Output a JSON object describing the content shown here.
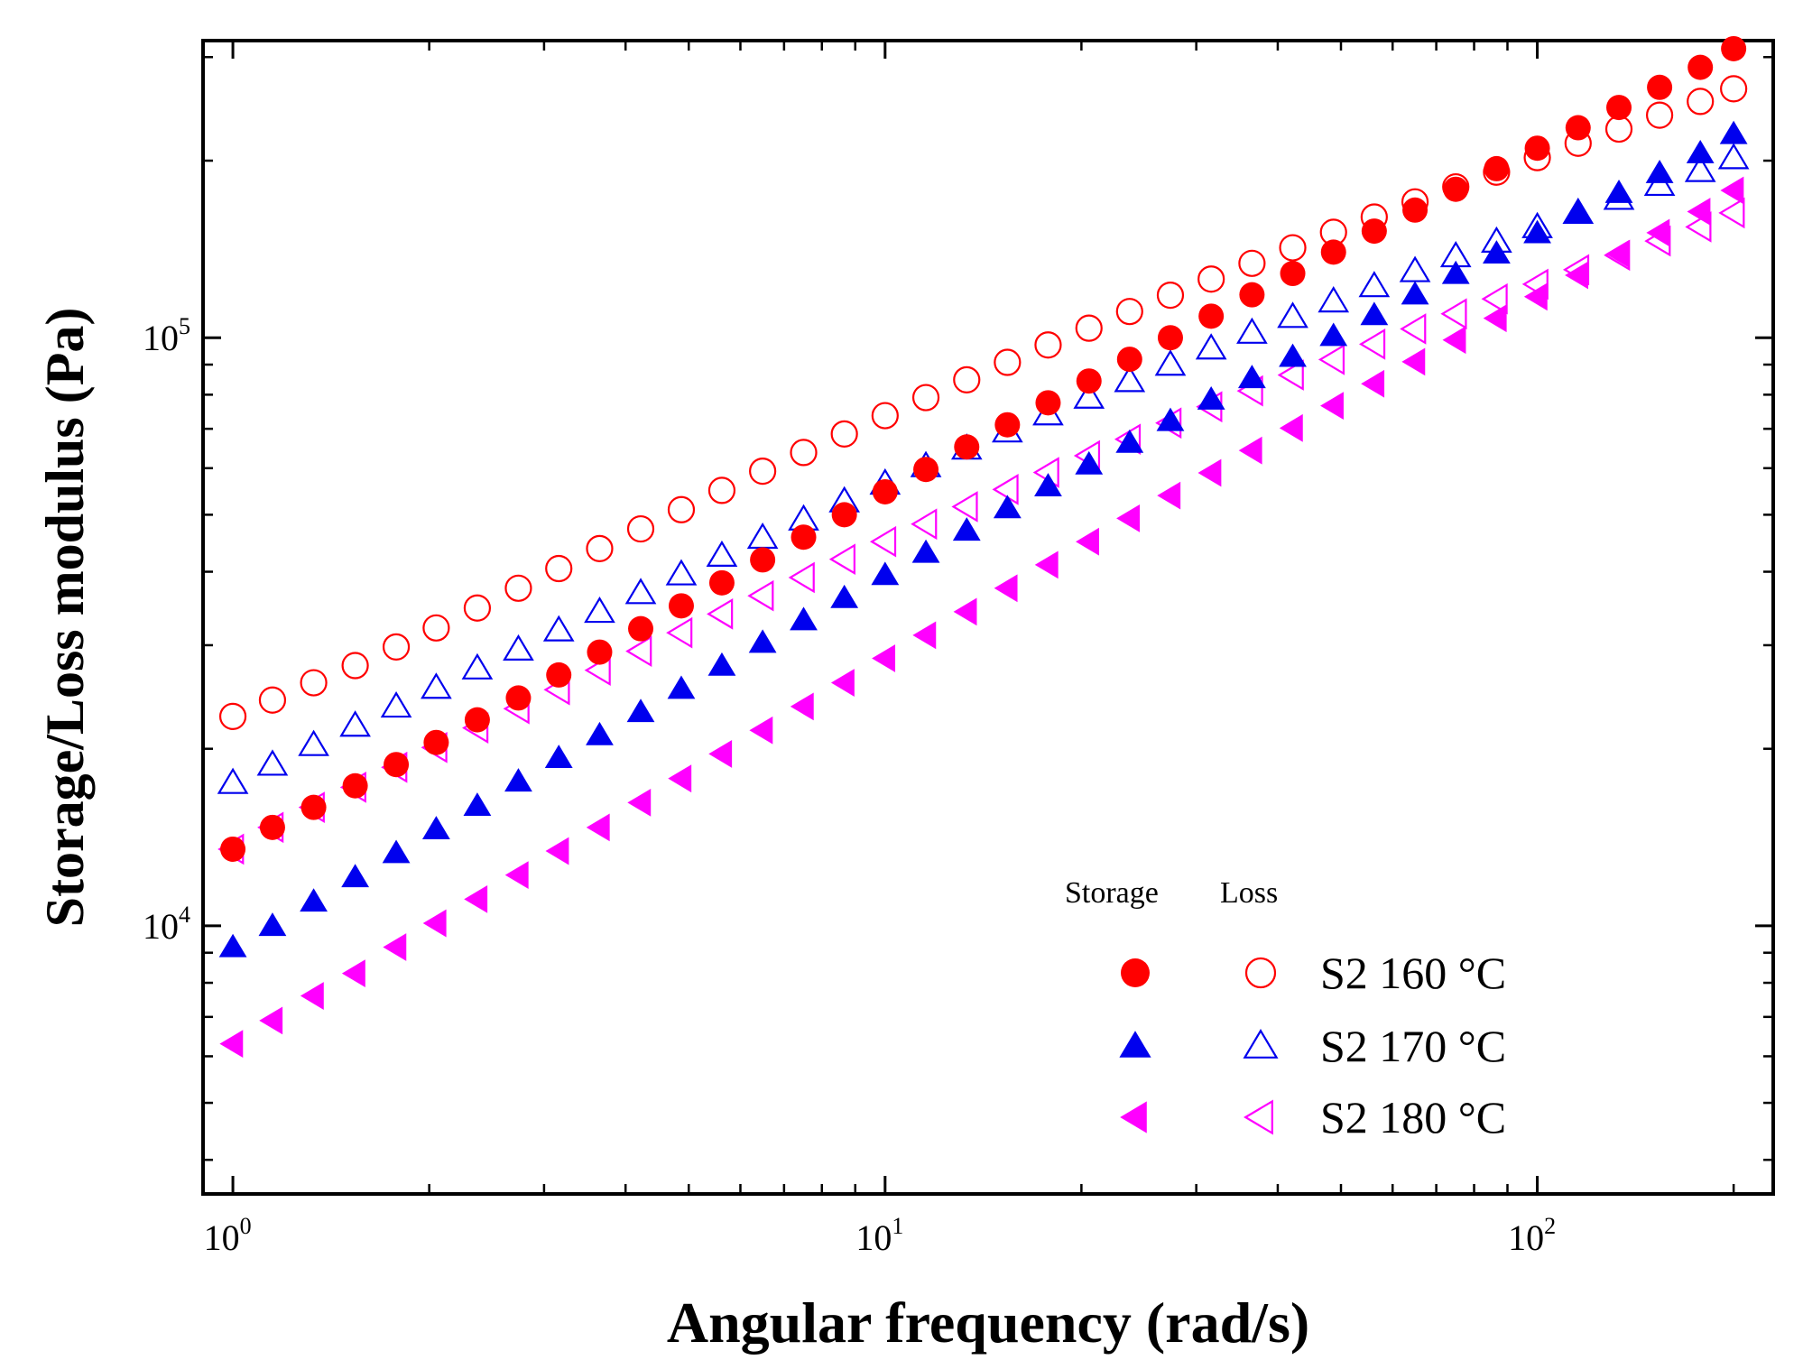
{
  "chart_data": {
    "type": "scatter",
    "xscale": "log",
    "yscale": "log",
    "xlim": [
      0.9,
      230
    ],
    "ylim": [
      3500,
      320000
    ],
    "xlabel": "Angular frequency (rad/s)",
    "ylabel": "Storage/Loss modulus (Pa)",
    "x_ticks": [
      {
        "value": 1,
        "base": "10",
        "exp": "0"
      },
      {
        "value": 10,
        "base": "10",
        "exp": "1"
      },
      {
        "value": 100,
        "base": "10",
        "exp": "2"
      }
    ],
    "y_ticks": [
      {
        "value": 10000,
        "base": "10",
        "exp": "4"
      },
      {
        "value": 100000,
        "base": "10",
        "exp": "5"
      }
    ],
    "x": [
      1,
      1.15,
      1.33,
      1.54,
      1.78,
      2.05,
      2.37,
      2.74,
      3.16,
      3.65,
      4.22,
      4.87,
      5.62,
      6.49,
      7.5,
      8.66,
      10,
      11.55,
      13.34,
      15.4,
      17.78,
      20.54,
      23.71,
      27.38,
      31.62,
      36.52,
      42.17,
      48.7,
      56.23,
      64.94,
      74.99,
      86.6,
      100,
      115.5,
      133.4,
      154,
      177.8,
      200
    ],
    "series": [
      {
        "name": "S2 160 °C Storage",
        "group": "160",
        "kind": "storage",
        "marker": "circle",
        "filled": true,
        "color": "#ff0000",
        "values": [
          13500,
          14700,
          15900,
          17300,
          18800,
          20500,
          22400,
          24400,
          26700,
          29200,
          32000,
          35000,
          38300,
          41900,
          45800,
          50000,
          54700,
          59700,
          65200,
          71100,
          77500,
          84400,
          91900,
          100000,
          108800,
          118300,
          128600,
          139800,
          151800,
          164800,
          178800,
          193800,
          210000,
          227500,
          246300,
          266500,
          288200,
          310000
        ]
      },
      {
        "name": "S2 160 °C Loss",
        "group": "160",
        "kind": "loss",
        "marker": "circle",
        "filled": false,
        "color": "#ff0000",
        "values": [
          22700,
          24200,
          25900,
          27700,
          29800,
          32100,
          34700,
          37500,
          40500,
          43800,
          47300,
          51000,
          55000,
          59300,
          63800,
          68600,
          73700,
          79100,
          84800,
          90800,
          97200,
          103800,
          110800,
          118100,
          125800,
          133800,
          142200,
          151100,
          160400,
          170200,
          180500,
          191200,
          202400,
          214100,
          226300,
          239000,
          252200,
          265000
        ]
      },
      {
        "name": "S2 170 °C Storage",
        "group": "170",
        "kind": "storage",
        "marker": "triangle-up",
        "filled": true,
        "color": "#0000ee",
        "values": [
          9200,
          10000,
          11000,
          12100,
          13300,
          14600,
          16000,
          17600,
          19300,
          21100,
          23100,
          25300,
          27700,
          30300,
          33100,
          36100,
          39500,
          43100,
          47000,
          51300,
          55900,
          60900,
          66300,
          72200,
          78500,
          85400,
          92800,
          100700,
          109300,
          118500,
          128400,
          139100,
          150600,
          163000,
          176300,
          190600,
          206000,
          222000
        ]
      },
      {
        "name": "S2 170 °C Loss",
        "group": "170",
        "kind": "loss",
        "marker": "triangle-up",
        "filled": false,
        "color": "#0000ee",
        "values": [
          17500,
          18800,
          20300,
          21900,
          23600,
          25400,
          27400,
          29500,
          31800,
          34200,
          36800,
          39600,
          42600,
          45700,
          49100,
          52700,
          56500,
          60500,
          64800,
          69300,
          74100,
          79100,
          84400,
          90000,
          95900,
          102000,
          108500,
          115300,
          122400,
          129800,
          137600,
          145700,
          154200,
          163100,
          172300,
          182000,
          192100,
          202000
        ]
      },
      {
        "name": "S2 180 °C Storage",
        "group": "180",
        "kind": "storage",
        "marker": "triangle-left",
        "filled": true,
        "color": "#ff00ff",
        "values": [
          6300,
          6900,
          7600,
          8300,
          9200,
          10100,
          11100,
          12200,
          13400,
          14700,
          16200,
          17800,
          19600,
          21500,
          23600,
          25900,
          28500,
          31200,
          34200,
          37500,
          41100,
          45000,
          49300,
          53900,
          58900,
          64300,
          70200,
          76600,
          83500,
          91000,
          99100,
          107900,
          117400,
          127700,
          138800,
          150800,
          163800,
          178000
        ]
      },
      {
        "name": "S2 180 °C Loss",
        "group": "180",
        "kind": "loss",
        "marker": "triangle-left",
        "filled": false,
        "color": "#ff00ff",
        "values": [
          13500,
          14700,
          15900,
          17200,
          18600,
          20100,
          21700,
          23400,
          25200,
          27200,
          29300,
          31500,
          33900,
          36400,
          39100,
          42000,
          45000,
          48200,
          51600,
          55200,
          59000,
          63000,
          67200,
          71600,
          76300,
          81200,
          86400,
          91800,
          97500,
          103500,
          109800,
          116400,
          123300,
          130500,
          138100,
          146000,
          154300,
          163000
        ]
      }
    ],
    "legend": {
      "position": "bottom-right",
      "header_storage": "Storage",
      "header_loss": "Loss",
      "rows": [
        {
          "label": "S2 160 °C",
          "group": "160"
        },
        {
          "label": "S2 170 °C",
          "group": "170"
        },
        {
          "label": "S2 180 °C",
          "group": "180"
        }
      ]
    }
  }
}
